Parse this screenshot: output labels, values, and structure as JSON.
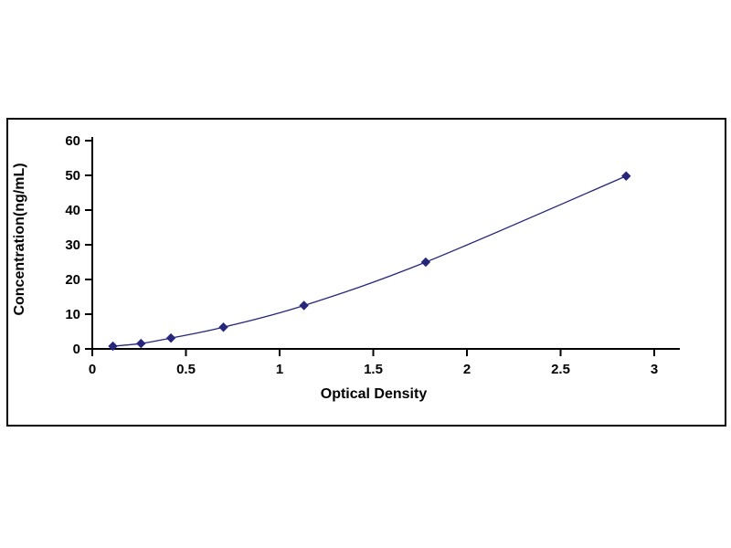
{
  "chart_data": {
    "type": "scatter",
    "title": "",
    "xlabel": "Optical Density",
    "ylabel": "Concentration(ng/mL)",
    "x": [
      0.11,
      0.26,
      0.42,
      0.7,
      1.13,
      1.78,
      2.85
    ],
    "y": [
      0.78,
      1.56,
      3.12,
      6.25,
      12.5,
      25.0,
      49.8
    ],
    "xlim": [
      0,
      3
    ],
    "ylim": [
      0,
      60
    ],
    "xticks": [
      0,
      0.5,
      1,
      1.5,
      2,
      2.5,
      3
    ],
    "xtick_labels": [
      "0",
      "0.5",
      "1",
      "1.5",
      "2",
      "2.5",
      "3"
    ],
    "yticks": [
      0,
      10,
      20,
      30,
      40,
      50,
      60
    ],
    "ytick_labels": [
      "0",
      "10",
      "20",
      "30",
      "40",
      "50",
      "60"
    ],
    "grid": false,
    "legend": "none",
    "marker": "diamond",
    "line_color": "#26267d",
    "marker_color": "#26267d",
    "axis_color": "#000000",
    "background_color": "#ffffff"
  }
}
